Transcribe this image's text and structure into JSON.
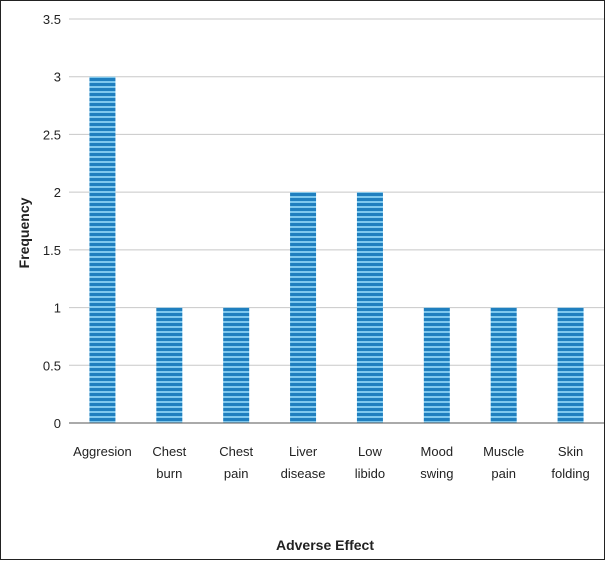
{
  "chart_data": {
    "type": "bar",
    "categories": [
      [
        "Aggresion"
      ],
      [
        "Chest",
        "burn"
      ],
      [
        "Chest",
        "pain"
      ],
      [
        "Liver",
        "disease"
      ],
      [
        "Low",
        "libido"
      ],
      [
        "Mood",
        "swing"
      ],
      [
        "Muscle",
        "pain"
      ],
      [
        "Skin",
        "folding"
      ]
    ],
    "values": [
      3,
      1,
      1,
      2,
      2,
      1,
      1,
      1
    ],
    "xlabel": "Adverse Effect",
    "ylabel": "Frequency",
    "ylim": [
      0,
      3.5
    ],
    "yticks": [
      "0",
      "0.5",
      "1",
      "1.5",
      "2",
      "2.5",
      "3",
      "3.5"
    ],
    "grid": "horizontal",
    "colors": {
      "bar_base": "#1f7fbf",
      "bar_stripe": "#7ec8ee",
      "gridline": "#c8c8c8",
      "axis": "#555555",
      "text": "#222222"
    }
  }
}
